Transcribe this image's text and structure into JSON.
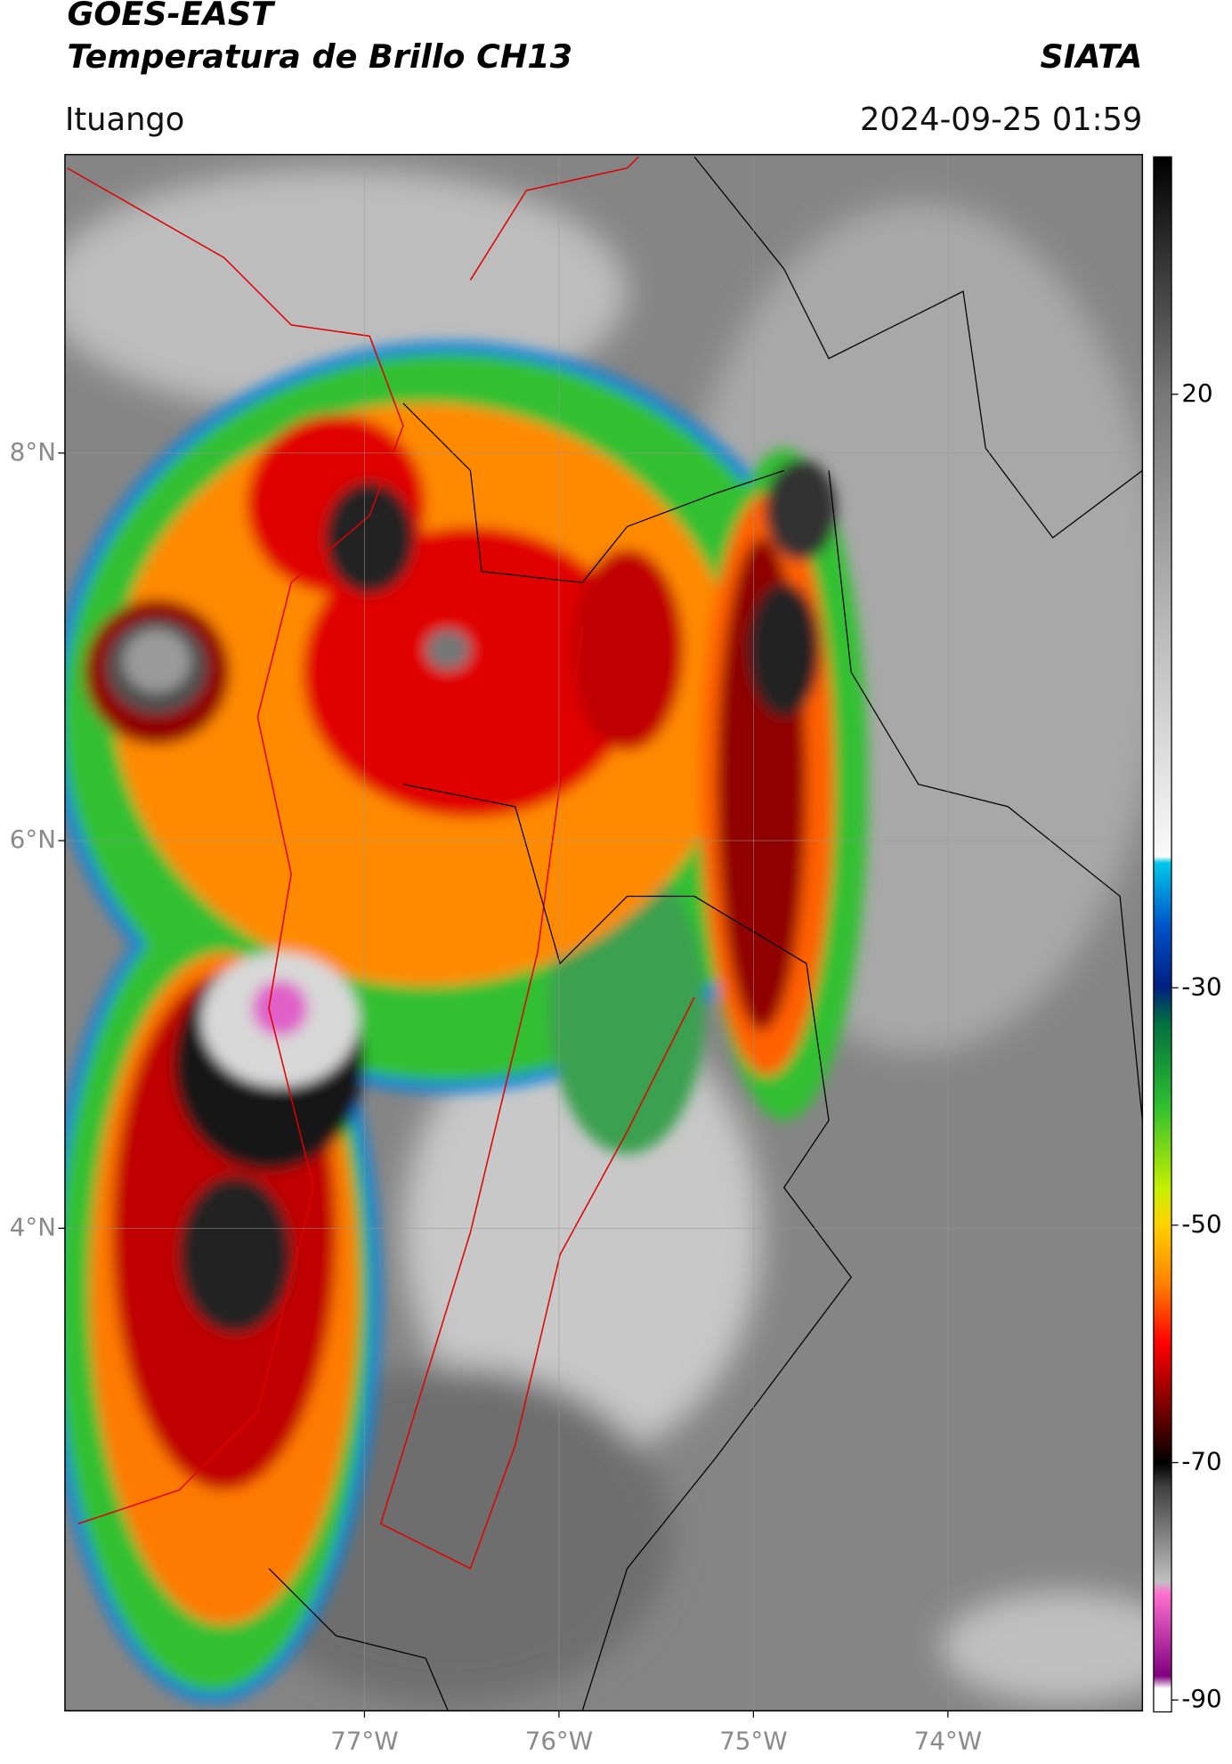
{
  "header": {
    "title": "GOES-EAST",
    "subtitle": "Temperatura de Brillo CH13",
    "brand": "SIATA",
    "region": "Ituango",
    "datetime": "2024-09-25 01:59"
  },
  "map": {
    "xlim": [
      -78.54,
      -73.0
    ],
    "ylim": [
      1.51,
      9.54
    ],
    "xticks": [
      {
        "value": -77,
        "label": "77°W"
      },
      {
        "value": -76,
        "label": "76°W"
      },
      {
        "value": -75,
        "label": "75°W"
      },
      {
        "value": -74,
        "label": "74°W"
      }
    ],
    "yticks": [
      {
        "value": 4,
        "label": "4°N"
      },
      {
        "value": 6,
        "label": "6°N"
      },
      {
        "value": 8,
        "label": "8°N"
      }
    ],
    "grid": true
  },
  "colorbar": {
    "ylim": [
      -91,
      40
    ],
    "ticks": [
      -90,
      -70,
      -50,
      -30,
      20
    ]
  }
}
